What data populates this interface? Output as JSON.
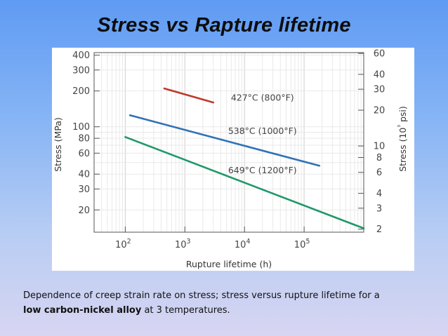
{
  "slide": {
    "title": "Stress vs Rapture lifetime",
    "caption_part1": "Dependence of creep strain rate on stress; stress versus rupture lifetime for a",
    "caption_bold": "low carbon-nickel alloy",
    "caption_part2": " at 3 temperatures."
  },
  "chart_data": {
    "type": "line",
    "title": "",
    "xlabel": "Rupture lifetime (h)",
    "ylabel": "Stress (MPa)",
    "y2label": "Stress (10³ psi)",
    "x_scale": "log",
    "y_scale": "log",
    "xlim": [
      30,
      1000000
    ],
    "ylim": [
      13,
      420
    ],
    "x_ticks": [
      {
        "value": 100,
        "base": "10",
        "exp": "2"
      },
      {
        "value": 1000,
        "base": "10",
        "exp": "3"
      },
      {
        "value": 10000,
        "base": "10",
        "exp": "4"
      },
      {
        "value": 100000,
        "base": "10",
        "exp": "5"
      }
    ],
    "y_ticks": [
      {
        "value": 400,
        "label": "400"
      },
      {
        "value": 300,
        "label": "300"
      },
      {
        "value": 200,
        "label": "200"
      },
      {
        "value": 100,
        "label": "100"
      },
      {
        "value": 80,
        "label": "80"
      },
      {
        "value": 60,
        "label": "60"
      },
      {
        "value": 40,
        "label": "40"
      },
      {
        "value": 30,
        "label": "30"
      },
      {
        "value": 20,
        "label": "20"
      }
    ],
    "y2_ticks": [
      {
        "value": 60,
        "label": "60"
      },
      {
        "value": 40,
        "label": "40"
      },
      {
        "value": 30,
        "label": "30"
      },
      {
        "value": 20,
        "label": "20"
      },
      {
        "value": 10,
        "label": "10"
      },
      {
        "value": 8,
        "label": "8"
      },
      {
        "value": 6,
        "label": "6"
      },
      {
        "value": 4,
        "label": "4"
      },
      {
        "value": 3,
        "label": "3"
      },
      {
        "value": 2,
        "label": "2"
      }
    ],
    "series": [
      {
        "name": "427°C (800°F)",
        "color": "#c0392b",
        "x": [
          450,
          3000
        ],
        "y": [
          210,
          160
        ],
        "label_at": [
          20000,
          175
        ]
      },
      {
        "name": "538°C (1000°F)",
        "color": "#2f72b8",
        "x": [
          120,
          180000
        ],
        "y": [
          125,
          47
        ],
        "label_at": [
          20000,
          92
        ]
      },
      {
        "name": "649°C (1200°F)",
        "color": "#20986a",
        "x": [
          100,
          1000000
        ],
        "y": [
          82,
          14
        ],
        "label_at": [
          20000,
          43
        ]
      }
    ],
    "grid": true,
    "legend": "inline labels"
  }
}
